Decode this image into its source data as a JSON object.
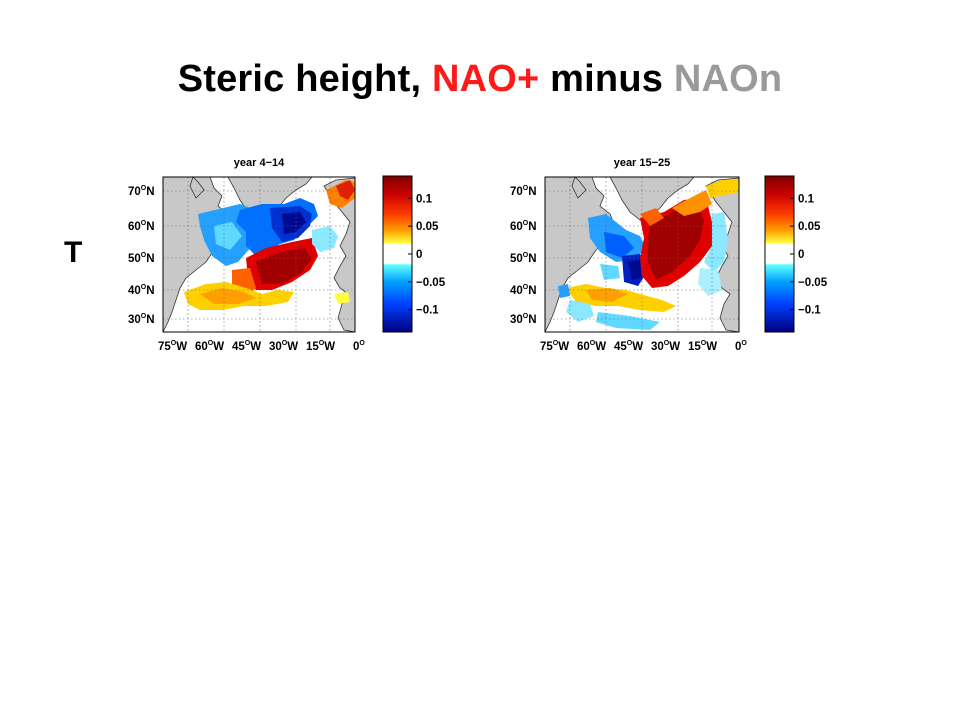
{
  "title": {
    "part1": "Steric height, ",
    "part2": "NAO+",
    "part3": " minus ",
    "part4": "NAOn"
  },
  "row_label": "T",
  "colors": {
    "land": "#c8c8c8",
    "nao_pos": "#ff1a1a",
    "nao_n": "#9a9a9a"
  },
  "panels": [
    {
      "title": "year 4−14"
    },
    {
      "title": "year 15−25"
    }
  ],
  "lat_labels": [
    "70",
    "60",
    "50",
    "40",
    "30"
  ],
  "lon_labels": [
    "75",
    "60",
    "45",
    "30",
    "15",
    "0"
  ],
  "colorbar_ticks": [
    "0.1",
    "0.05",
    "0",
    "−0.05",
    "−0.1"
  ],
  "colorbar_values": [
    0.1,
    0.05,
    0,
    -0.05,
    -0.1
  ],
  "colorbar_range": [
    -0.14,
    0.14
  ],
  "degree_symbol": "O",
  "north_letter": "N",
  "west_letter": "W"
}
